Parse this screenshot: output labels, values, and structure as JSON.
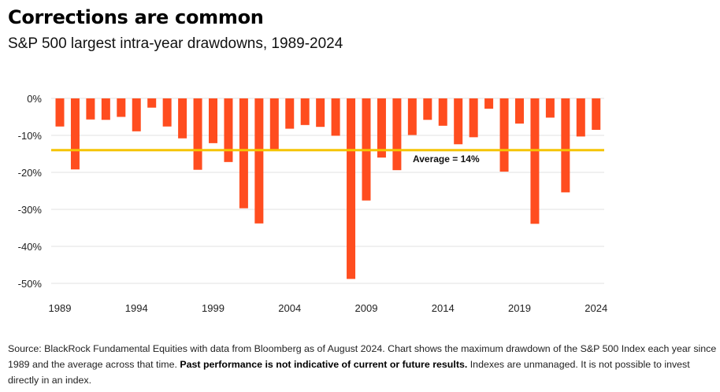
{
  "header": {
    "title": "Corrections are common",
    "subtitle": "S&P 500 largest intra-year drawdowns, 1989-2024"
  },
  "footer": {
    "source_text": "Source: BlackRock Fundamental Equities with data from Bloomberg as of August 2024. Chart shows the maximum drawdown of the S&P 500 Index each year since 1989 and the average across that time.",
    "disclaimer_bold": "Past performance is not indicative of current or future results.",
    "disclaimer_rest": "Indexes are unmanaged. It is not possible to invest directly in an index."
  },
  "colors": {
    "bar": "#ff4d1f",
    "average_line": "#f5c400",
    "grid": "#e2e2e2",
    "tick_text": "#222222"
  },
  "chart_data": {
    "type": "bar",
    "x": [
      1989,
      1990,
      1991,
      1992,
      1993,
      1994,
      1995,
      1996,
      1997,
      1998,
      1999,
      2000,
      2001,
      2002,
      2003,
      2004,
      2005,
      2006,
      2007,
      2008,
      2009,
      2010,
      2011,
      2012,
      2013,
      2014,
      2015,
      2016,
      2017,
      2018,
      2019,
      2020,
      2021,
      2022,
      2023,
      2024
    ],
    "values": [
      -7.6,
      -19.2,
      -5.7,
      -5.8,
      -5.0,
      -8.9,
      -2.5,
      -7.6,
      -10.8,
      -19.3,
      -12.1,
      -17.2,
      -29.7,
      -33.8,
      -14.1,
      -8.2,
      -7.2,
      -7.7,
      -10.1,
      -48.8,
      -27.6,
      -16.0,
      -19.4,
      -9.9,
      -5.8,
      -7.4,
      -12.4,
      -10.5,
      -2.8,
      -19.8,
      -6.8,
      -33.9,
      -5.2,
      -25.4,
      -10.3,
      -8.5
    ],
    "xticks": [
      "1989",
      "1994",
      "1999",
      "2004",
      "2009",
      "2014",
      "2019",
      "2024"
    ],
    "yticks": [
      "0%",
      "-10%",
      "-20%",
      "-30%",
      "-40%",
      "-50%"
    ],
    "ylim": [
      -50,
      0
    ],
    "grid": true,
    "average": {
      "value": -14,
      "label": "Average = 14%"
    }
  }
}
